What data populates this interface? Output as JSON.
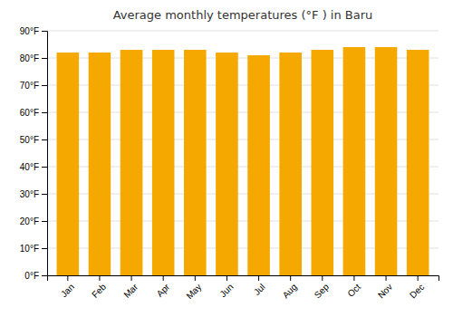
{
  "chart_data": {
    "type": "bar",
    "title": "Average monthly temperatures (°F ) in Baru",
    "categories": [
      "Jan",
      "Feb",
      "Mar",
      "Apr",
      "May",
      "Jun",
      "Jul",
      "Aug",
      "Sep",
      "Oct",
      "Nov",
      "Dec"
    ],
    "values": [
      82,
      82,
      83,
      83,
      83,
      82,
      81,
      82,
      83,
      84,
      84,
      83
    ],
    "color": "#F5A800",
    "ylim": [
      0,
      90
    ],
    "yticks": [
      {
        "value": 0,
        "label": "0°F"
      },
      {
        "value": 10,
        "label": "10°F"
      },
      {
        "value": 20,
        "label": "20°F"
      },
      {
        "value": 30,
        "label": "30°F"
      },
      {
        "value": 40,
        "label": "40°F"
      },
      {
        "value": 50,
        "label": "50°F"
      },
      {
        "value": 60,
        "label": "60°F"
      },
      {
        "value": 70,
        "label": "70°F"
      },
      {
        "value": 80,
        "label": "80°F"
      },
      {
        "value": 90,
        "label": "90°F"
      }
    ],
    "grid": true
  }
}
